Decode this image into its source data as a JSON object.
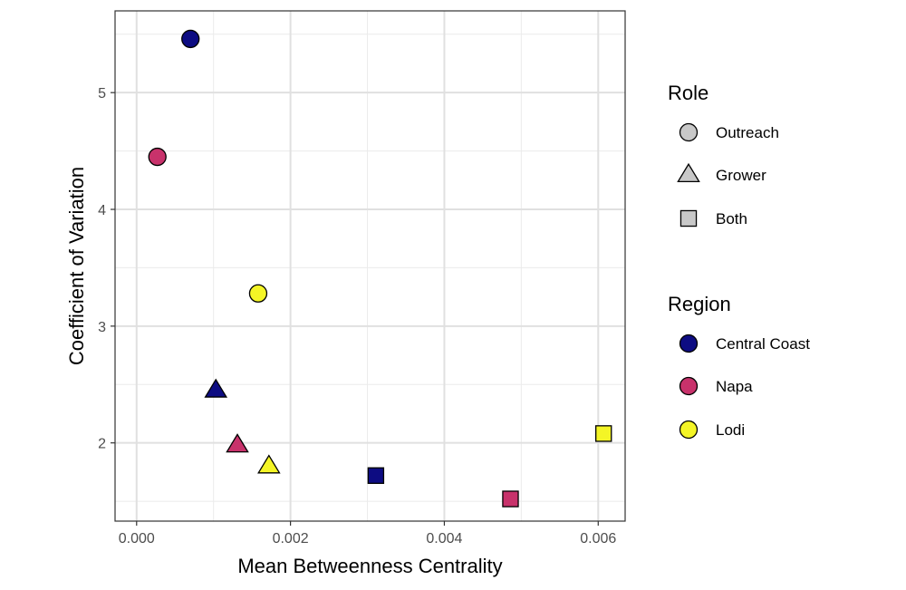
{
  "chart_data": {
    "type": "scatter",
    "title": "",
    "xlabel": "Mean Betweenness Centrality",
    "ylabel": "Coefficient of Variation",
    "xlim": [
      -0.00028,
      0.00635
    ],
    "ylim": [
      1.33,
      5.7
    ],
    "x_ticks": [
      0.0,
      0.002,
      0.004,
      0.006
    ],
    "x_tick_labels": [
      "0.000",
      "0.002",
      "0.004",
      "0.006"
    ],
    "y_ticks": [
      2,
      3,
      4,
      5
    ],
    "y_tick_labels": [
      "2",
      "3",
      "4",
      "5"
    ],
    "grid": true,
    "legend_placement": "right",
    "points": [
      {
        "x": 0.0007,
        "y": 5.46,
        "role": "Outreach",
        "region": "Central Coast"
      },
      {
        "x": 0.00027,
        "y": 4.45,
        "role": "Outreach",
        "region": "Napa"
      },
      {
        "x": 0.00158,
        "y": 3.28,
        "role": "Outreach",
        "region": "Lodi"
      },
      {
        "x": 0.00103,
        "y": 2.45,
        "role": "Grower",
        "region": "Central Coast"
      },
      {
        "x": 0.00131,
        "y": 1.98,
        "role": "Grower",
        "region": "Napa"
      },
      {
        "x": 0.00172,
        "y": 1.8,
        "role": "Grower",
        "region": "Lodi"
      },
      {
        "x": 0.00311,
        "y": 1.72,
        "role": "Both",
        "region": "Central Coast"
      },
      {
        "x": 0.00486,
        "y": 1.52,
        "role": "Both",
        "region": "Napa"
      },
      {
        "x": 0.00607,
        "y": 2.08,
        "role": "Both",
        "region": "Lodi"
      }
    ],
    "legends": [
      {
        "title": "Role",
        "kind": "shape",
        "entries": [
          {
            "label": "Outreach",
            "shape": "circle"
          },
          {
            "label": "Grower",
            "shape": "triangle"
          },
          {
            "label": "Both",
            "shape": "square"
          }
        ]
      },
      {
        "title": "Region",
        "kind": "color",
        "entries": [
          {
            "label": "Central Coast",
            "color": "#0d0c82"
          },
          {
            "label": "Napa",
            "color": "#c8326b"
          },
          {
            "label": "Lodi",
            "color": "#f4f526"
          }
        ]
      }
    ],
    "role_shapes": {
      "Outreach": "circle",
      "Grower": "triangle",
      "Both": "square"
    },
    "region_colors": {
      "Central Coast": "#0d0c82",
      "Napa": "#c8326b",
      "Lodi": "#f4f526"
    },
    "legend_shape_fill": "#c8c8c8"
  }
}
